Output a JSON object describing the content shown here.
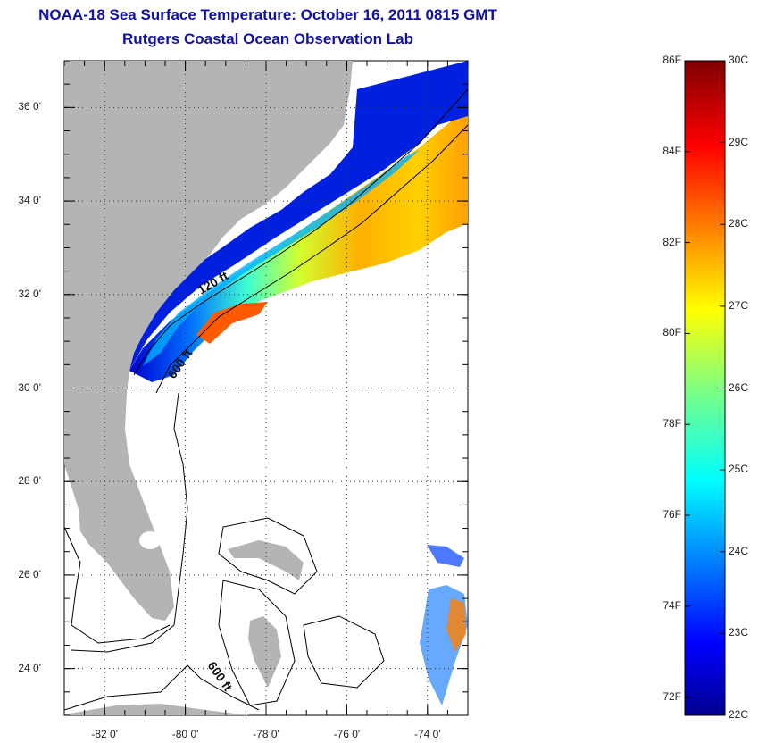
{
  "title": {
    "line1": "NOAA-18 Sea Surface Temperature:  October 16, 2011 0815 GMT",
    "line2": "Rutgers Coastal Ocean Observation Lab"
  },
  "map": {
    "lat_range": [
      23.0,
      37.0
    ],
    "lon_range": [
      -83.0,
      -73.0
    ],
    "lat_ticks": [
      {
        "value": 36,
        "label": "36 0'"
      },
      {
        "value": 34,
        "label": "34 0'"
      },
      {
        "value": 32,
        "label": "32 0'"
      },
      {
        "value": 30,
        "label": "30 0'"
      },
      {
        "value": 28,
        "label": "28 0'"
      },
      {
        "value": 26,
        "label": "26 0'"
      },
      {
        "value": 24,
        "label": "24 0'"
      }
    ],
    "lon_ticks": [
      {
        "value": -82,
        "label": "-82 0'"
      },
      {
        "value": -80,
        "label": "-80 0'"
      },
      {
        "value": -78,
        "label": "-78 0'"
      },
      {
        "value": -76,
        "label": "-76 0'"
      },
      {
        "value": -74,
        "label": "-74 0'"
      }
    ],
    "contour_labels": {
      "c120": "120 ft",
      "c600a": "600 ft",
      "c600b": "600 ft"
    },
    "land_color": "#b4b4b4"
  },
  "colorbar": {
    "fahrenheit": [
      {
        "value": 86,
        "label": "86F"
      },
      {
        "value": 84,
        "label": "84F"
      },
      {
        "value": 82,
        "label": "82F"
      },
      {
        "value": 80,
        "label": "80F"
      },
      {
        "value": 78,
        "label": "78F"
      },
      {
        "value": 76,
        "label": "76F"
      },
      {
        "value": 74,
        "label": "74F"
      },
      {
        "value": 72,
        "label": "72F"
      }
    ],
    "celsius": [
      {
        "value": 30,
        "label": "30C"
      },
      {
        "value": 29,
        "label": "29C"
      },
      {
        "value": 28,
        "label": "28C"
      },
      {
        "value": 27,
        "label": "27C"
      },
      {
        "value": 26,
        "label": "26C"
      },
      {
        "value": 25,
        "label": "25C"
      },
      {
        "value": 24,
        "label": "24C"
      },
      {
        "value": 23,
        "label": "23C"
      },
      {
        "value": 22,
        "label": "22C"
      }
    ],
    "range_c": [
      22,
      30
    ],
    "colormap": "jet"
  }
}
